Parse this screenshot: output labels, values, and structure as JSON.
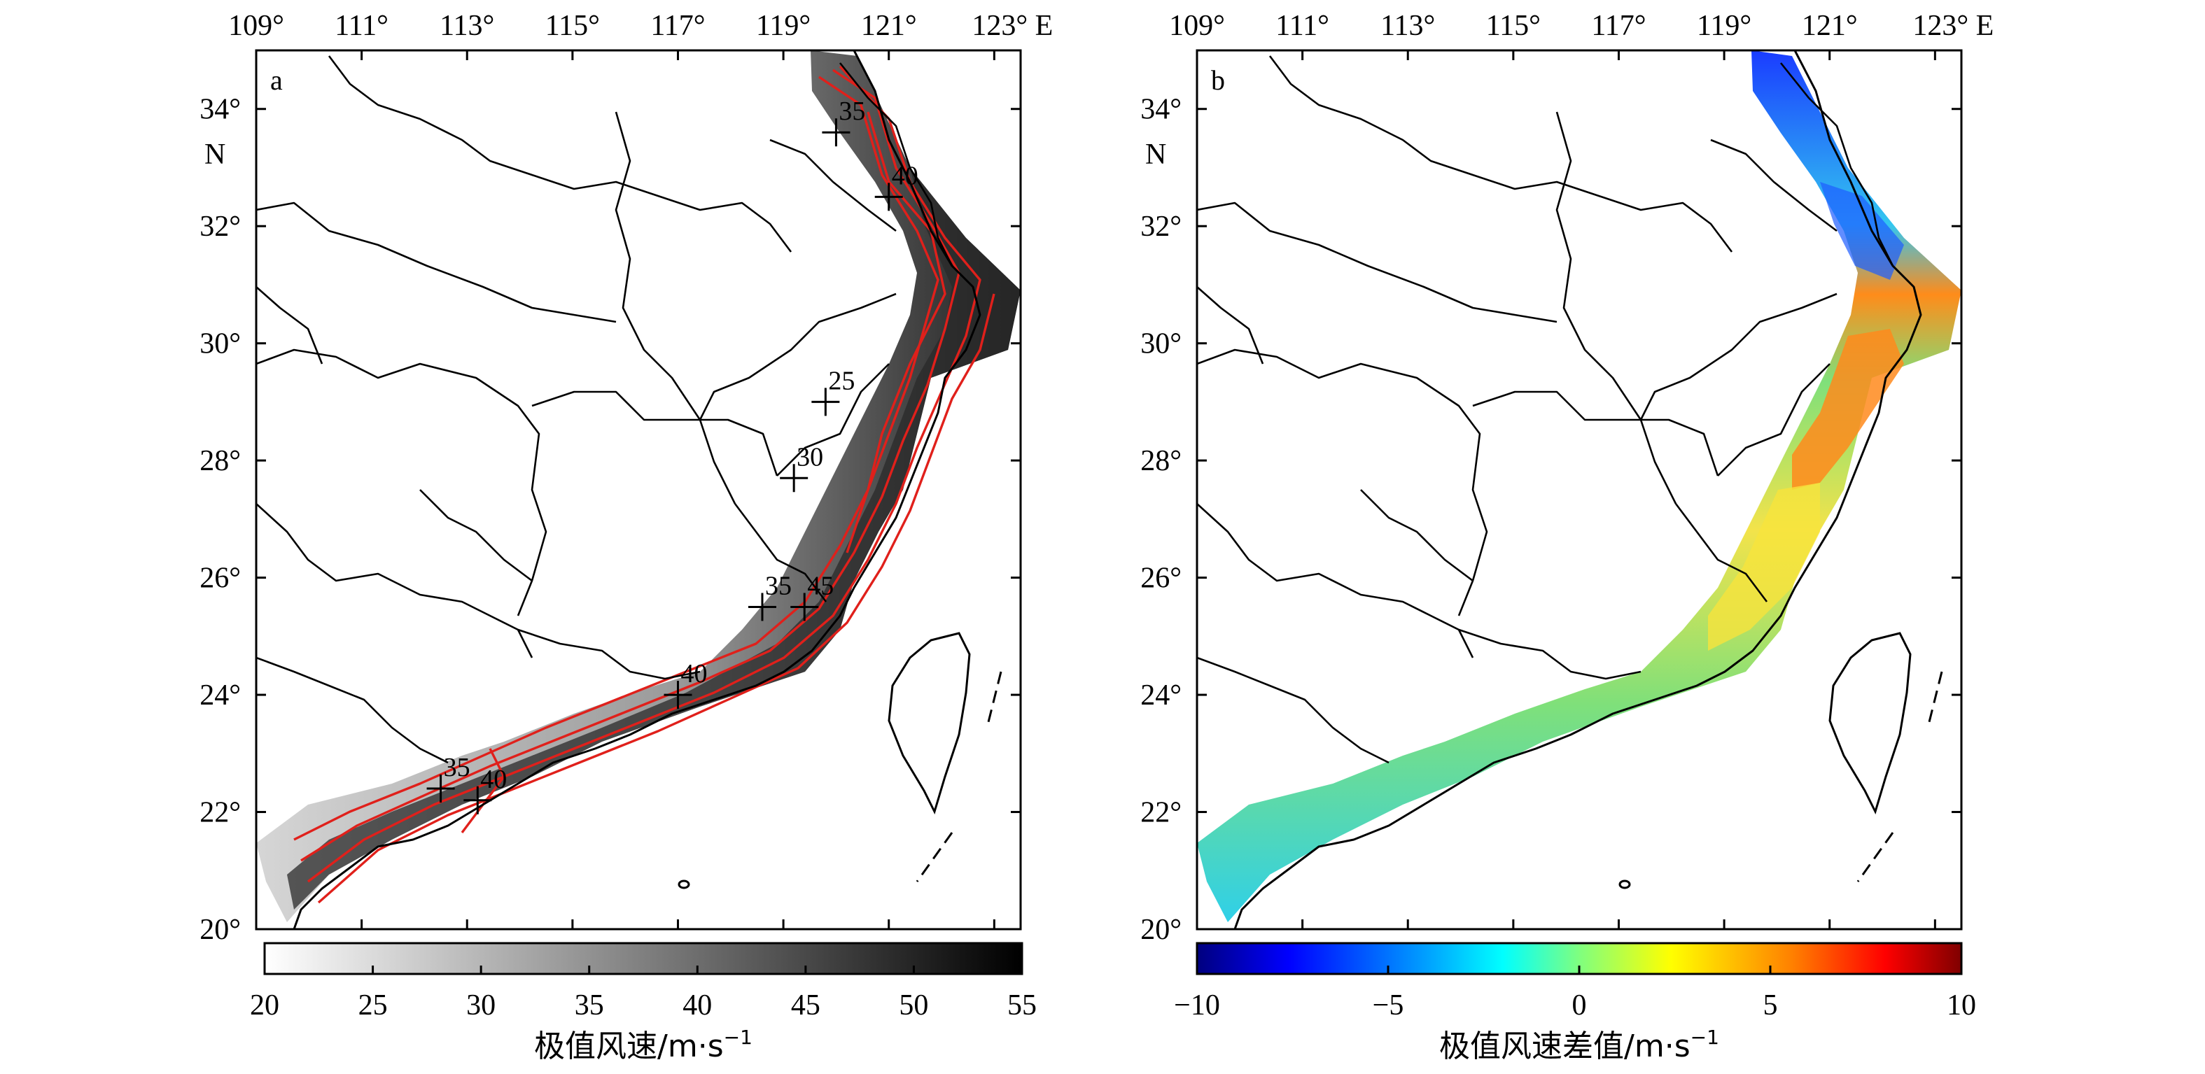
{
  "panels": [
    {
      "label": "a",
      "lon_ticks": [
        "109°",
        "111°",
        "113°",
        "115°",
        "117°",
        "119°",
        "121°",
        "123° E"
      ],
      "lat_ticks": [
        "34°",
        "32°",
        "30°",
        "28°",
        "26°",
        "24°",
        "22°",
        "20°"
      ],
      "lat_unit": "N",
      "field": "extreme_wind_speed",
      "colormap": "gray",
      "contour_color": "#e0201b",
      "station_labels": [
        "35",
        "40",
        "25",
        "30",
        "35",
        "45",
        "40",
        "35",
        "40"
      ],
      "colorbar": {
        "ticks": [
          "20",
          "25",
          "30",
          "35",
          "40",
          "45",
          "50",
          "55"
        ],
        "range": [
          20,
          55
        ],
        "caption_main": "极值风速/m·s",
        "caption_sup": "−1"
      }
    },
    {
      "label": "b",
      "lon_ticks": [
        "109°",
        "111°",
        "113°",
        "115°",
        "117°",
        "119°",
        "121°",
        "123° E"
      ],
      "lat_ticks": [
        "34°",
        "32°",
        "30°",
        "28°",
        "26°",
        "24°",
        "22°",
        "20°"
      ],
      "lat_unit": "N",
      "field": "extreme_wind_speed_difference",
      "colormap": "jet",
      "colorbar": {
        "ticks": [
          "−10",
          "−5",
          "0",
          "5",
          "10"
        ],
        "range": [
          -10,
          10
        ],
        "caption_main": "极值风速差值/m·s",
        "caption_sup": "−1"
      }
    }
  ],
  "map_extent": {
    "lon": [
      109,
      123.5
    ],
    "lat": [
      20,
      35
    ]
  },
  "colors": {
    "contour": "#e0201b",
    "frame": "#000000",
    "jet_stops": [
      "#00007f",
      "#0000ff",
      "#007fff",
      "#00ffff",
      "#7fff7f",
      "#ffff00",
      "#ff7f00",
      "#ff0000",
      "#7f0000"
    ],
    "gray_stops": [
      "#ffffff",
      "#000000"
    ]
  }
}
